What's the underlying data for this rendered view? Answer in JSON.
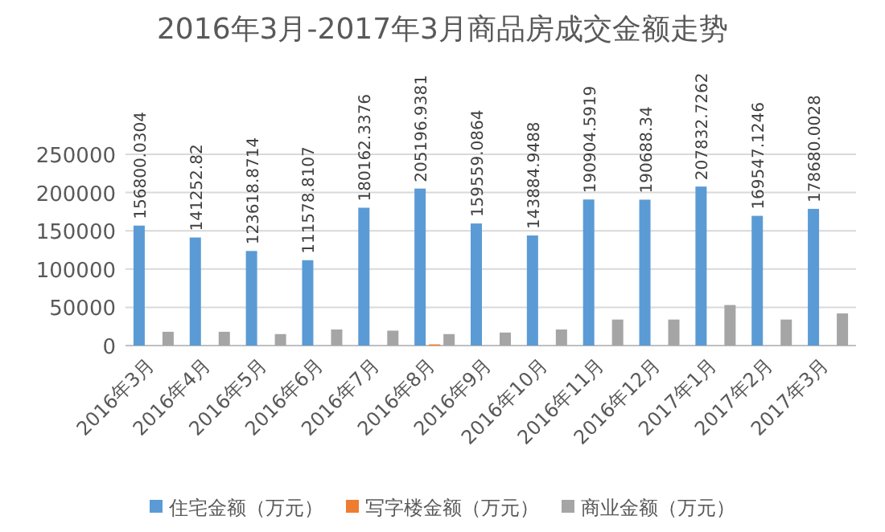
{
  "chart_data": {
    "type": "bar",
    "title": "2016年3月-2017年3月商品房成交金额走势",
    "categories": [
      "2016年3月",
      "2016年4月",
      "2016年5月",
      "2016年6月",
      "2016年7月",
      "2016年8月",
      "2016年9月",
      "2016年10月",
      "2016年11月",
      "2016年12月",
      "2017年1月",
      "2017年2月",
      "2017年3月"
    ],
    "ylim": [
      0,
      250000
    ],
    "yticks": [
      0,
      50000,
      100000,
      150000,
      200000,
      250000
    ],
    "grid": "y",
    "legend": "bottom",
    "series": [
      {
        "name": "住宅金额（万元）",
        "color": "#5b9bd5",
        "values": [
          156800.0304,
          141252.82,
          123618.8714,
          111578.8107,
          180162.3376,
          205196.9381,
          159559.0864,
          143884.9488,
          190904.5919,
          190688.34,
          207832.7262,
          169547.1246,
          178680.0028
        ],
        "value_labels": [
          "156800.0304",
          "141252.82",
          "123618.8714",
          "111578.8107",
          "180162.3376",
          "205196.9381",
          "159559.0864",
          "143884.9488",
          "190904.5919",
          "190688.34",
          "207832.7262",
          "169547.1246",
          "178680.0028"
        ]
      },
      {
        "name": "写字楼金额（万元）",
        "color": "#ed7d31",
        "values": [
          0,
          0,
          0,
          0,
          0,
          1500,
          0,
          0,
          0,
          0,
          0,
          0,
          0
        ]
      },
      {
        "name": "商业金额（万元）",
        "color": "#a5a5a5",
        "values": [
          18000,
          18000,
          15000,
          21000,
          19500,
          15000,
          17000,
          21000,
          34000,
          34000,
          53000,
          34000,
          42000
        ]
      }
    ]
  }
}
